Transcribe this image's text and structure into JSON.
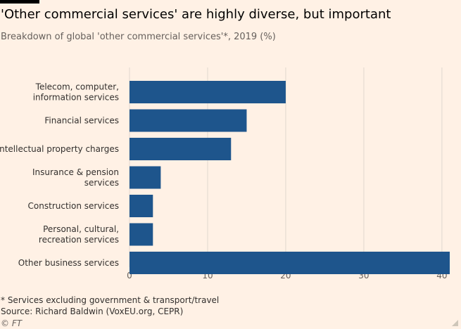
{
  "header": {
    "title": "'Other commercial services' are highly diverse, but important",
    "subtitle": "Breakdown of global 'other commercial services'*, 2019 (%)"
  },
  "footer": {
    "note": "* Services excluding government & transport/travel",
    "source": "Source: Richard Baldwin (VoxEU.org, CEPR)",
    "credit": "© FT"
  },
  "colors": {
    "bar": "#1e558c",
    "grid": "#e0d8ce",
    "axis": "#66605c",
    "background": "#fff1e5"
  },
  "chart_data": {
    "type": "bar",
    "orientation": "horizontal",
    "title": "'Other commercial services' are highly diverse, but important",
    "subtitle": "Breakdown of global 'other commercial services'*, 2019 (%)",
    "categories": [
      "Telecom, computer, information services",
      "Financial services",
      "Intellectual property charges",
      "Insurance & pension services",
      "Construction services",
      "Personal, cultural, recreation services",
      "Other business services"
    ],
    "category_lines": [
      [
        "Telecom, computer,",
        "information services"
      ],
      [
        "Financial services"
      ],
      [
        "Intellectual property charges"
      ],
      [
        "Insurance & pension",
        "services"
      ],
      [
        "Construction services"
      ],
      [
        "Personal, cultural,",
        "recreation services"
      ],
      [
        "Other business services"
      ]
    ],
    "values": [
      20,
      15,
      13,
      4,
      3,
      3,
      41
    ],
    "xlim": [
      0,
      41
    ],
    "xticks": [
      0,
      10,
      20,
      30,
      40
    ],
    "xlabel": "",
    "ylabel": "",
    "grid": true
  }
}
